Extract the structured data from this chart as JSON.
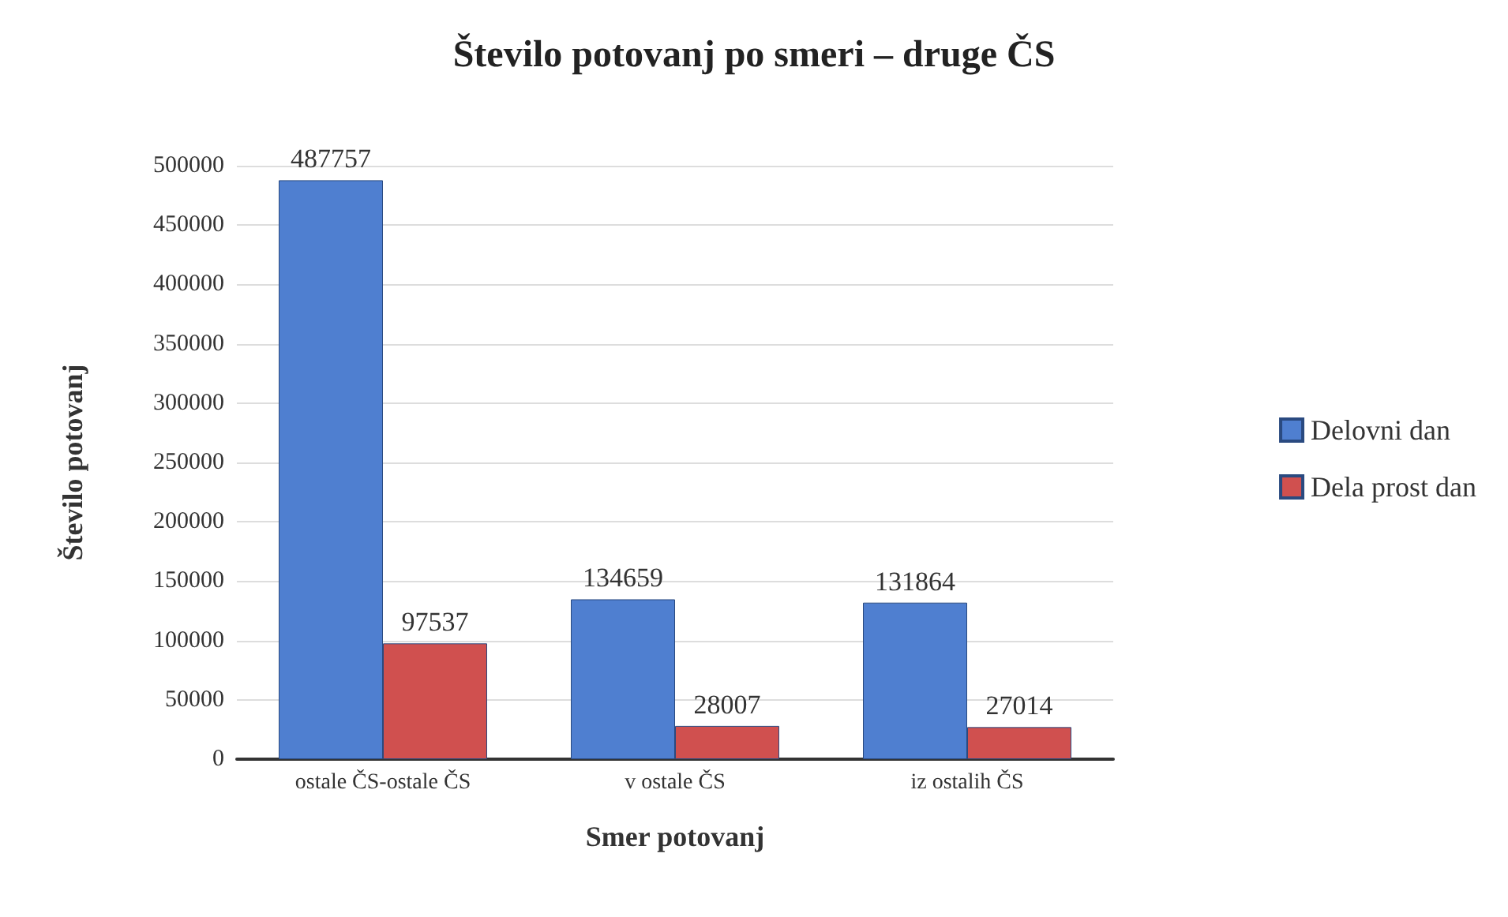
{
  "chart_data": {
    "type": "bar",
    "title": "Število potovanj po smeri – druge ČS",
    "xlabel": "Smer potovanj",
    "ylabel": "Število potovanj",
    "categories": [
      "ostale ČS-ostale ČS",
      "v ostale ČS",
      "iz ostalih ČS"
    ],
    "series": [
      {
        "name": "Delovni dan",
        "color": "#4f7fd0",
        "values": [
          487757,
          134659,
          131864
        ]
      },
      {
        "name": "Dela prost dan",
        "color": "#d0504f",
        "values": [
          97537,
          28007,
          27014
        ]
      }
    ],
    "ylim": [
      0,
      500000
    ],
    "yticks": [
      0,
      50000,
      100000,
      150000,
      200000,
      250000,
      300000,
      350000,
      400000,
      450000,
      500000
    ],
    "grid": "y",
    "legend": "right",
    "data_labels": true
  }
}
